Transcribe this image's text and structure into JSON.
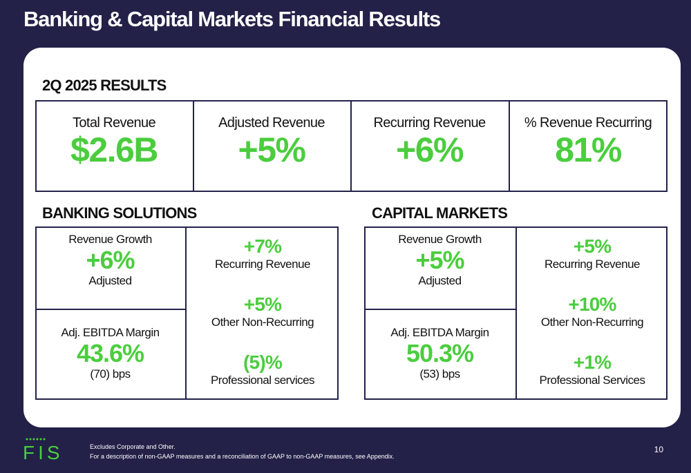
{
  "header": {
    "title": "Banking & Capital Markets Financial Results"
  },
  "results": {
    "heading": "2Q 2025 RESULTS",
    "kpis": [
      {
        "label": "Total Revenue",
        "value": "$2.6B"
      },
      {
        "label": "Adjusted Revenue",
        "value": "+5%"
      },
      {
        "label": "Recurring Revenue",
        "value": "+6%"
      },
      {
        "label": "% Revenue Recurring",
        "value": "81%"
      }
    ]
  },
  "banking": {
    "heading": "BANKING SOLUTIONS",
    "growth_label": "Revenue Growth",
    "growth_value": "+6%",
    "growth_sub": "Adjusted",
    "margin_label": "Adj. EBITDA Margin",
    "margin_value": "43.6%",
    "margin_sub": "(70) bps",
    "breakdown": [
      {
        "value": "+7%",
        "label": "Recurring Revenue"
      },
      {
        "value": "+5%",
        "label": "Other Non-Recurring"
      },
      {
        "value": "(5)%",
        "label": "Professional services"
      }
    ]
  },
  "capital": {
    "heading": "CAPITAL MARKETS",
    "growth_label": "Revenue Growth",
    "growth_value": "+5%",
    "growth_sub": "Adjusted",
    "margin_label": "Adj. EBITDA Margin",
    "margin_value": "50.3%",
    "margin_sub": "(53) bps",
    "breakdown": [
      {
        "value": "+5%",
        "label": "Recurring Revenue"
      },
      {
        "value": "+10%",
        "label": "Other Non-Recurring"
      },
      {
        "value": "+1%",
        "label": "Professional Services"
      }
    ]
  },
  "footer": {
    "note1": "Excludes Corporate and Other.",
    "note2": "For a description of non-GAAP measures and a reconciliation of GAAP to non-GAAP measures, see Appendix.",
    "page": "10",
    "logo_text": "FIS"
  },
  "colors": {
    "navy": "#232148",
    "green": "#4bcd3e"
  }
}
